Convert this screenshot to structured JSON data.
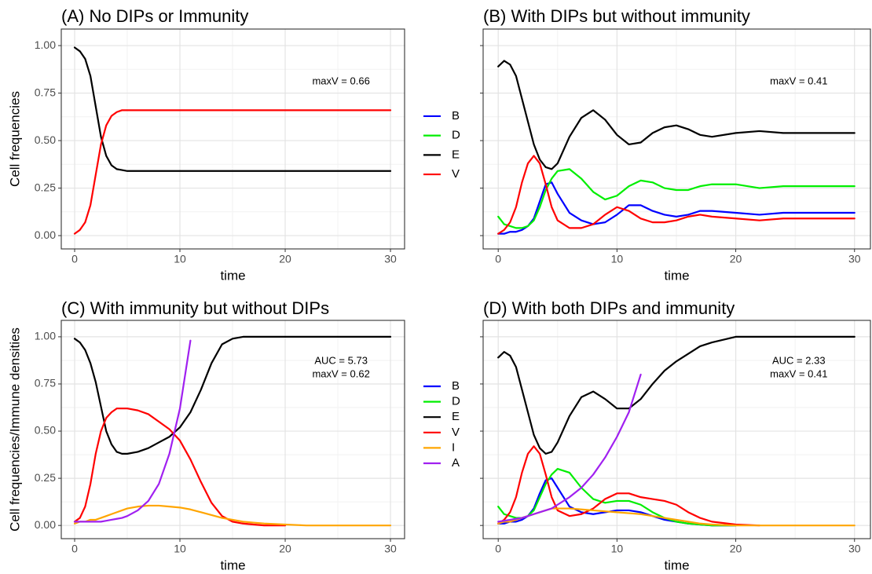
{
  "chart_data": [
    {
      "type": "line",
      "title": "(A) No DIPs or Immunity",
      "xlabel": "time",
      "ylabel": "Cell frequencies",
      "annotations": [
        "maxV = 0.66"
      ],
      "xlim": [
        -1.27,
        31.34
      ],
      "ylim": [
        -0.07,
        1.087
      ],
      "xticks": [
        0,
        10,
        20,
        30
      ],
      "yticks": [
        {
          "value": 0,
          "label": "0.00"
        },
        {
          "value": 0.25,
          "label": "0.25"
        },
        {
          "value": 0.5,
          "label": "0.50"
        },
        {
          "value": 0.75,
          "label": "0.75"
        },
        {
          "value": 1,
          "label": "1.00"
        }
      ],
      "y_tick_labels": true,
      "grid": true,
      "legend": "none",
      "x": [
        0,
        0.5,
        1,
        1.5,
        2,
        2.5,
        3,
        3.5,
        4,
        4.5,
        5,
        6,
        7,
        8,
        9,
        10,
        11,
        12,
        13,
        14,
        15,
        16,
        17,
        18,
        20,
        22,
        24,
        26,
        28,
        30
      ],
      "series": [
        {
          "name": "E",
          "color": "#000000",
          "values": [
            0.99,
            0.97,
            0.93,
            0.84,
            0.68,
            0.52,
            0.42,
            0.37,
            0.35,
            0.345,
            0.34,
            0.34,
            0.34,
            0.34,
            0.34,
            0.34,
            0.34,
            0.34,
            0.34,
            0.34,
            0.34,
            0.34,
            0.34,
            0.34,
            0.34,
            0.34,
            0.34,
            0.34,
            0.34,
            0.34
          ]
        },
        {
          "name": "V",
          "color": "#ff0000",
          "values": [
            0.01,
            0.03,
            0.07,
            0.16,
            0.32,
            0.48,
            0.58,
            0.63,
            0.65,
            0.66,
            0.66,
            0.66,
            0.66,
            0.66,
            0.66,
            0.66,
            0.66,
            0.66,
            0.66,
            0.66,
            0.66,
            0.66,
            0.66,
            0.66,
            0.66,
            0.66,
            0.66,
            0.66,
            0.66,
            0.66
          ]
        }
      ]
    },
    {
      "type": "line",
      "title": "(B) With DIPs but without immunity",
      "xlabel": "time",
      "annotations": [
        "maxV = 0.41"
      ],
      "xlim": [
        -1.27,
        31.34
      ],
      "ylim": [
        -0.07,
        1.087
      ],
      "xticks": [
        0,
        10,
        20,
        30
      ],
      "yticks": [
        0,
        0.25,
        0.5,
        0.75,
        1
      ],
      "y_tick_labels": false,
      "grid": true,
      "legend": "left",
      "x": [
        0,
        0.5,
        1,
        1.5,
        2,
        2.5,
        3,
        3.5,
        4,
        4.5,
        5,
        6,
        7,
        8,
        9,
        10,
        11,
        12,
        13,
        14,
        15,
        16,
        17,
        18,
        20,
        22,
        24,
        26,
        28,
        30
      ],
      "series": [
        {
          "name": "B",
          "color": "#0000ff",
          "values": [
            0.01,
            0.01,
            0.02,
            0.02,
            0.03,
            0.05,
            0.09,
            0.18,
            0.27,
            0.28,
            0.22,
            0.12,
            0.08,
            0.06,
            0.07,
            0.11,
            0.16,
            0.16,
            0.13,
            0.11,
            0.1,
            0.11,
            0.13,
            0.13,
            0.12,
            0.11,
            0.12,
            0.12,
            0.12,
            0.12
          ]
        },
        {
          "name": "D",
          "color": "#00ee00",
          "values": [
            0.1,
            0.06,
            0.05,
            0.04,
            0.04,
            0.05,
            0.08,
            0.15,
            0.24,
            0.3,
            0.34,
            0.35,
            0.3,
            0.23,
            0.19,
            0.21,
            0.26,
            0.29,
            0.28,
            0.25,
            0.24,
            0.24,
            0.26,
            0.27,
            0.27,
            0.25,
            0.26,
            0.26,
            0.26,
            0.26
          ]
        },
        {
          "name": "E",
          "color": "#000000",
          "values": [
            0.89,
            0.92,
            0.9,
            0.84,
            0.72,
            0.6,
            0.48,
            0.4,
            0.36,
            0.35,
            0.38,
            0.52,
            0.62,
            0.66,
            0.61,
            0.53,
            0.48,
            0.49,
            0.54,
            0.57,
            0.58,
            0.56,
            0.53,
            0.52,
            0.54,
            0.55,
            0.54,
            0.54,
            0.54,
            0.54
          ]
        },
        {
          "name": "V",
          "color": "#ff0000",
          "values": [
            0.01,
            0.03,
            0.07,
            0.15,
            0.28,
            0.38,
            0.42,
            0.38,
            0.27,
            0.15,
            0.08,
            0.04,
            0.04,
            0.06,
            0.11,
            0.15,
            0.13,
            0.09,
            0.07,
            0.07,
            0.08,
            0.1,
            0.11,
            0.1,
            0.09,
            0.08,
            0.09,
            0.09,
            0.09,
            0.09
          ]
        }
      ]
    },
    {
      "type": "line",
      "title": "(C) With immunity but without DIPs",
      "xlabel": "time",
      "ylabel": "Cell frequencies/Immune densities",
      "annotations": [
        "AUC = 5.73",
        "maxV = 0.62"
      ],
      "xlim": [
        -1.27,
        31.34
      ],
      "ylim": [
        -0.07,
        1.087
      ],
      "xticks": [
        0,
        10,
        20,
        30
      ],
      "yticks": [
        {
          "value": 0,
          "label": "0.00"
        },
        {
          "value": 0.25,
          "label": "0.25"
        },
        {
          "value": 0.5,
          "label": "0.50"
        },
        {
          "value": 0.75,
          "label": "0.75"
        },
        {
          "value": 1,
          "label": "1.00"
        }
      ],
      "y_tick_labels": true,
      "grid": true,
      "legend": "none",
      "x": [
        0,
        0.5,
        1,
        1.5,
        2,
        2.5,
        3,
        3.5,
        4,
        4.5,
        5,
        6,
        7,
        8,
        9,
        10,
        11,
        12,
        13,
        14,
        15,
        16,
        17,
        18,
        20,
        22,
        24,
        26,
        28,
        30
      ],
      "series": [
        {
          "name": "E",
          "color": "#000000",
          "values": [
            0.99,
            0.97,
            0.93,
            0.86,
            0.76,
            0.63,
            0.5,
            0.43,
            0.39,
            0.38,
            0.38,
            0.39,
            0.41,
            0.44,
            0.47,
            0.52,
            0.6,
            0.72,
            0.86,
            0.96,
            0.99,
            1,
            1,
            1,
            1,
            1,
            1,
            1,
            1,
            1
          ]
        },
        {
          "name": "V",
          "color": "#ff0000",
          "values": [
            0.02,
            0.04,
            0.1,
            0.22,
            0.38,
            0.5,
            0.57,
            0.6,
            0.62,
            0.62,
            0.62,
            0.61,
            0.59,
            0.55,
            0.51,
            0.45,
            0.35,
            0.23,
            0.12,
            0.05,
            0.02,
            0.01,
            0.005,
            0,
            0,
            null,
            null,
            null,
            null,
            null
          ]
        },
        {
          "name": "I",
          "color": "#ffa500",
          "values": [
            0.01,
            0.02,
            0.02,
            0.03,
            0.03,
            0.04,
            0.05,
            0.06,
            0.07,
            0.08,
            0.09,
            0.1,
            0.105,
            0.105,
            0.1,
            0.095,
            0.085,
            0.07,
            0.055,
            0.04,
            0.03,
            0.02,
            0.015,
            0.01,
            0.005,
            0,
            0,
            0,
            0,
            0
          ]
        },
        {
          "name": "A",
          "color": "#a020f0",
          "values": [
            0.02,
            0.02,
            0.02,
            0.02,
            0.02,
            0.02,
            0.025,
            0.03,
            0.035,
            0.04,
            0.05,
            0.08,
            0.13,
            0.22,
            0.38,
            0.62,
            0.98,
            null,
            null,
            null,
            null,
            null,
            null,
            null,
            null,
            null,
            null,
            null,
            null,
            null
          ]
        }
      ]
    },
    {
      "type": "line",
      "title": "(D) With both DIPs and immunity",
      "xlabel": "time",
      "annotations": [
        "AUC = 2.33",
        "maxV = 0.41"
      ],
      "xlim": [
        -1.27,
        31.34
      ],
      "ylim": [
        -0.07,
        1.087
      ],
      "xticks": [
        0,
        10,
        20,
        30
      ],
      "yticks": [
        0,
        0.25,
        0.5,
        0.75,
        1
      ],
      "y_tick_labels": false,
      "grid": true,
      "legend": "left",
      "x": [
        0,
        0.5,
        1,
        1.5,
        2,
        2.5,
        3,
        3.5,
        4,
        4.5,
        5,
        6,
        7,
        8,
        9,
        10,
        11,
        12,
        13,
        14,
        15,
        16,
        17,
        18,
        20,
        22,
        24,
        26,
        28,
        30
      ],
      "series": [
        {
          "name": "B",
          "color": "#0000ff",
          "values": [
            0.01,
            0.01,
            0.02,
            0.02,
            0.03,
            0.05,
            0.09,
            0.17,
            0.24,
            0.25,
            0.2,
            0.1,
            0.07,
            0.06,
            0.07,
            0.08,
            0.08,
            0.07,
            0.05,
            0.03,
            0.02,
            0.01,
            0.005,
            0,
            0,
            null,
            null,
            null,
            null,
            null
          ]
        },
        {
          "name": "D",
          "color": "#00ee00",
          "values": [
            0.1,
            0.06,
            0.05,
            0.04,
            0.04,
            0.05,
            0.08,
            0.15,
            0.22,
            0.27,
            0.3,
            0.28,
            0.2,
            0.14,
            0.12,
            0.13,
            0.13,
            0.11,
            0.07,
            0.04,
            0.02,
            0.01,
            0.005,
            0,
            0,
            null,
            null,
            null,
            null,
            null
          ]
        },
        {
          "name": "E",
          "color": "#000000",
          "values": [
            0.89,
            0.92,
            0.9,
            0.84,
            0.72,
            0.6,
            0.48,
            0.41,
            0.38,
            0.39,
            0.44,
            0.58,
            0.68,
            0.71,
            0.67,
            0.62,
            0.62,
            0.67,
            0.75,
            0.82,
            0.87,
            0.91,
            0.95,
            0.97,
            1,
            1,
            1,
            1,
            1,
            1
          ]
        },
        {
          "name": "V",
          "color": "#ff0000",
          "values": [
            0.01,
            0.03,
            0.07,
            0.15,
            0.28,
            0.38,
            0.42,
            0.38,
            0.27,
            0.15,
            0.08,
            0.05,
            0.06,
            0.09,
            0.14,
            0.17,
            0.17,
            0.15,
            0.14,
            0.13,
            0.11,
            0.07,
            0.04,
            0.02,
            0.005,
            0,
            null,
            null,
            null,
            null
          ]
        },
        {
          "name": "I",
          "color": "#ffa500",
          "values": [
            0.01,
            0.02,
            0.02,
            0.03,
            0.04,
            0.05,
            0.06,
            0.07,
            0.08,
            0.09,
            0.09,
            0.09,
            0.085,
            0.08,
            0.075,
            0.07,
            0.065,
            0.06,
            0.05,
            0.04,
            0.03,
            0.02,
            0.01,
            0.005,
            0,
            0,
            0,
            0,
            0,
            0
          ]
        },
        {
          "name": "A",
          "color": "#a020f0",
          "values": [
            0.02,
            0.025,
            0.03,
            0.035,
            0.04,
            0.05,
            0.06,
            0.07,
            0.08,
            0.09,
            0.11,
            0.15,
            0.2,
            0.27,
            0.36,
            0.47,
            0.6,
            0.8,
            null,
            null,
            null,
            null,
            null,
            null,
            null,
            null,
            null,
            null,
            null,
            null
          ]
        }
      ]
    }
  ]
}
